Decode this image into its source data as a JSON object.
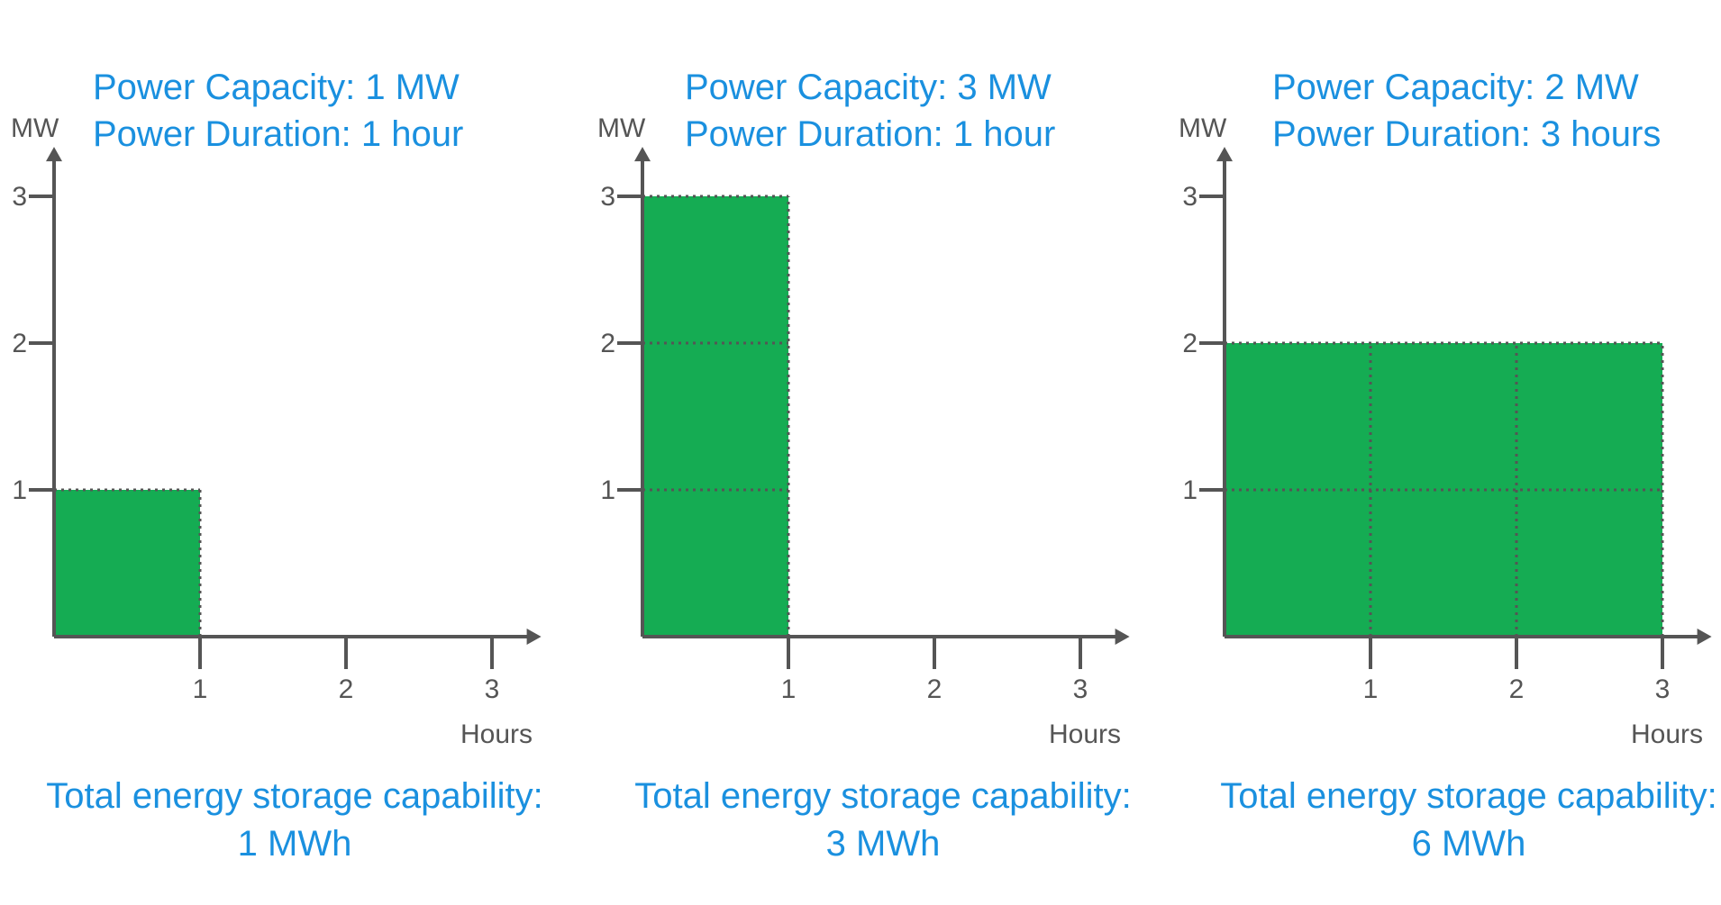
{
  "colors": {
    "fill": "#15ac53",
    "text_accent": "#1a90df",
    "axis": "#555555"
  },
  "chart_data": [
    {
      "type": "area",
      "title_lines": [
        "Power Capacity: 1 MW",
        "Power Duration: 1 hour"
      ],
      "ylabel": "MW",
      "xlabel": "Hours",
      "x_ticks": [
        "1",
        "2",
        "3"
      ],
      "y_ticks": [
        "1",
        "2",
        "3"
      ],
      "xlim": [
        0,
        3.3
      ],
      "ylim": [
        0,
        3.3
      ],
      "power_mw": 1,
      "duration_hours": 1,
      "footer_lines": [
        "Total energy storage capability:",
        "1 MWh"
      ]
    },
    {
      "type": "area",
      "title_lines": [
        "Power Capacity: 3 MW",
        "Power Duration: 1 hour"
      ],
      "ylabel": "MW",
      "xlabel": "Hours",
      "x_ticks": [
        "1",
        "2",
        "3"
      ],
      "y_ticks": [
        "1",
        "2",
        "3"
      ],
      "xlim": [
        0,
        3.3
      ],
      "ylim": [
        0,
        3.3
      ],
      "power_mw": 3,
      "duration_hours": 1,
      "footer_lines": [
        "Total energy storage capability:",
        "3 MWh"
      ]
    },
    {
      "type": "area",
      "title_lines": [
        "Power Capacity: 2 MW",
        "Power Duration: 3 hours"
      ],
      "ylabel": "MW",
      "xlabel": "Hours",
      "x_ticks": [
        "1",
        "2",
        "3"
      ],
      "y_ticks": [
        "1",
        "2",
        "3"
      ],
      "xlim": [
        0,
        3.3
      ],
      "ylim": [
        0,
        3.3
      ],
      "power_mw": 2,
      "duration_hours": 3,
      "footer_lines": [
        "Total energy storage capability:",
        "6 MWh"
      ]
    }
  ]
}
